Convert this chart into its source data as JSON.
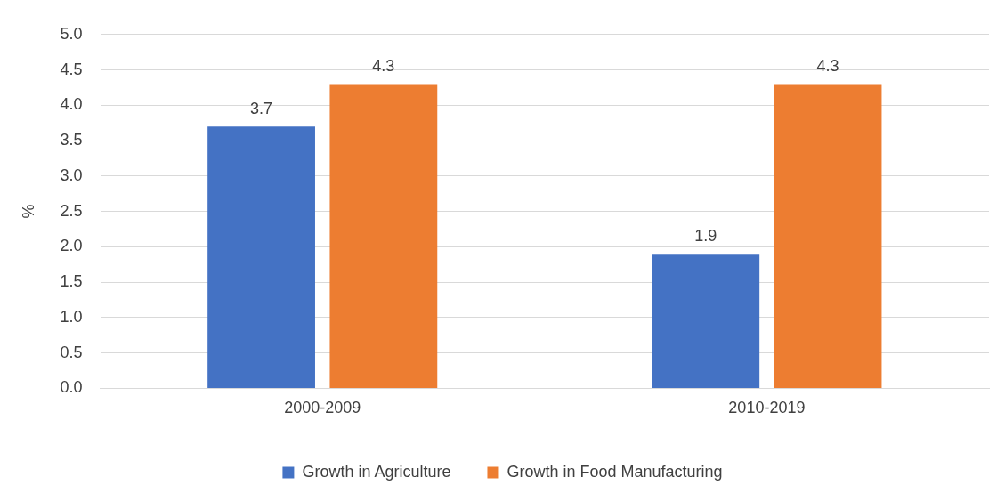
{
  "chart_data": {
    "type": "bar",
    "ylabel": "%",
    "categories": [
      "2000-2009",
      "2010-2019"
    ],
    "series": [
      {
        "name": "Growth in Agriculture",
        "color": "#4472c4",
        "values": [
          3.7,
          1.9
        ]
      },
      {
        "name": "Growth in Food Manufacturing",
        "color": "#ed7d31",
        "values": [
          4.3,
          4.3
        ]
      }
    ],
    "ylim": [
      0,
      5
    ],
    "yticks": [
      {
        "value": 0,
        "label": "0.0"
      },
      {
        "value": 0.5,
        "label": "0.5"
      },
      {
        "value": 1,
        "label": "1.0"
      },
      {
        "value": 1.5,
        "label": "1.5"
      },
      {
        "value": 2,
        "label": "2.0"
      },
      {
        "value": 2.5,
        "label": "2.5"
      },
      {
        "value": 3,
        "label": "3.0"
      },
      {
        "value": 3.5,
        "label": "3.5"
      },
      {
        "value": 4,
        "label": "4.0"
      },
      {
        "value": 4.5,
        "label": "4.5"
      },
      {
        "value": 5,
        "label": "5.0"
      }
    ],
    "grid": "y",
    "legend": "bottom",
    "data_labels": true
  }
}
